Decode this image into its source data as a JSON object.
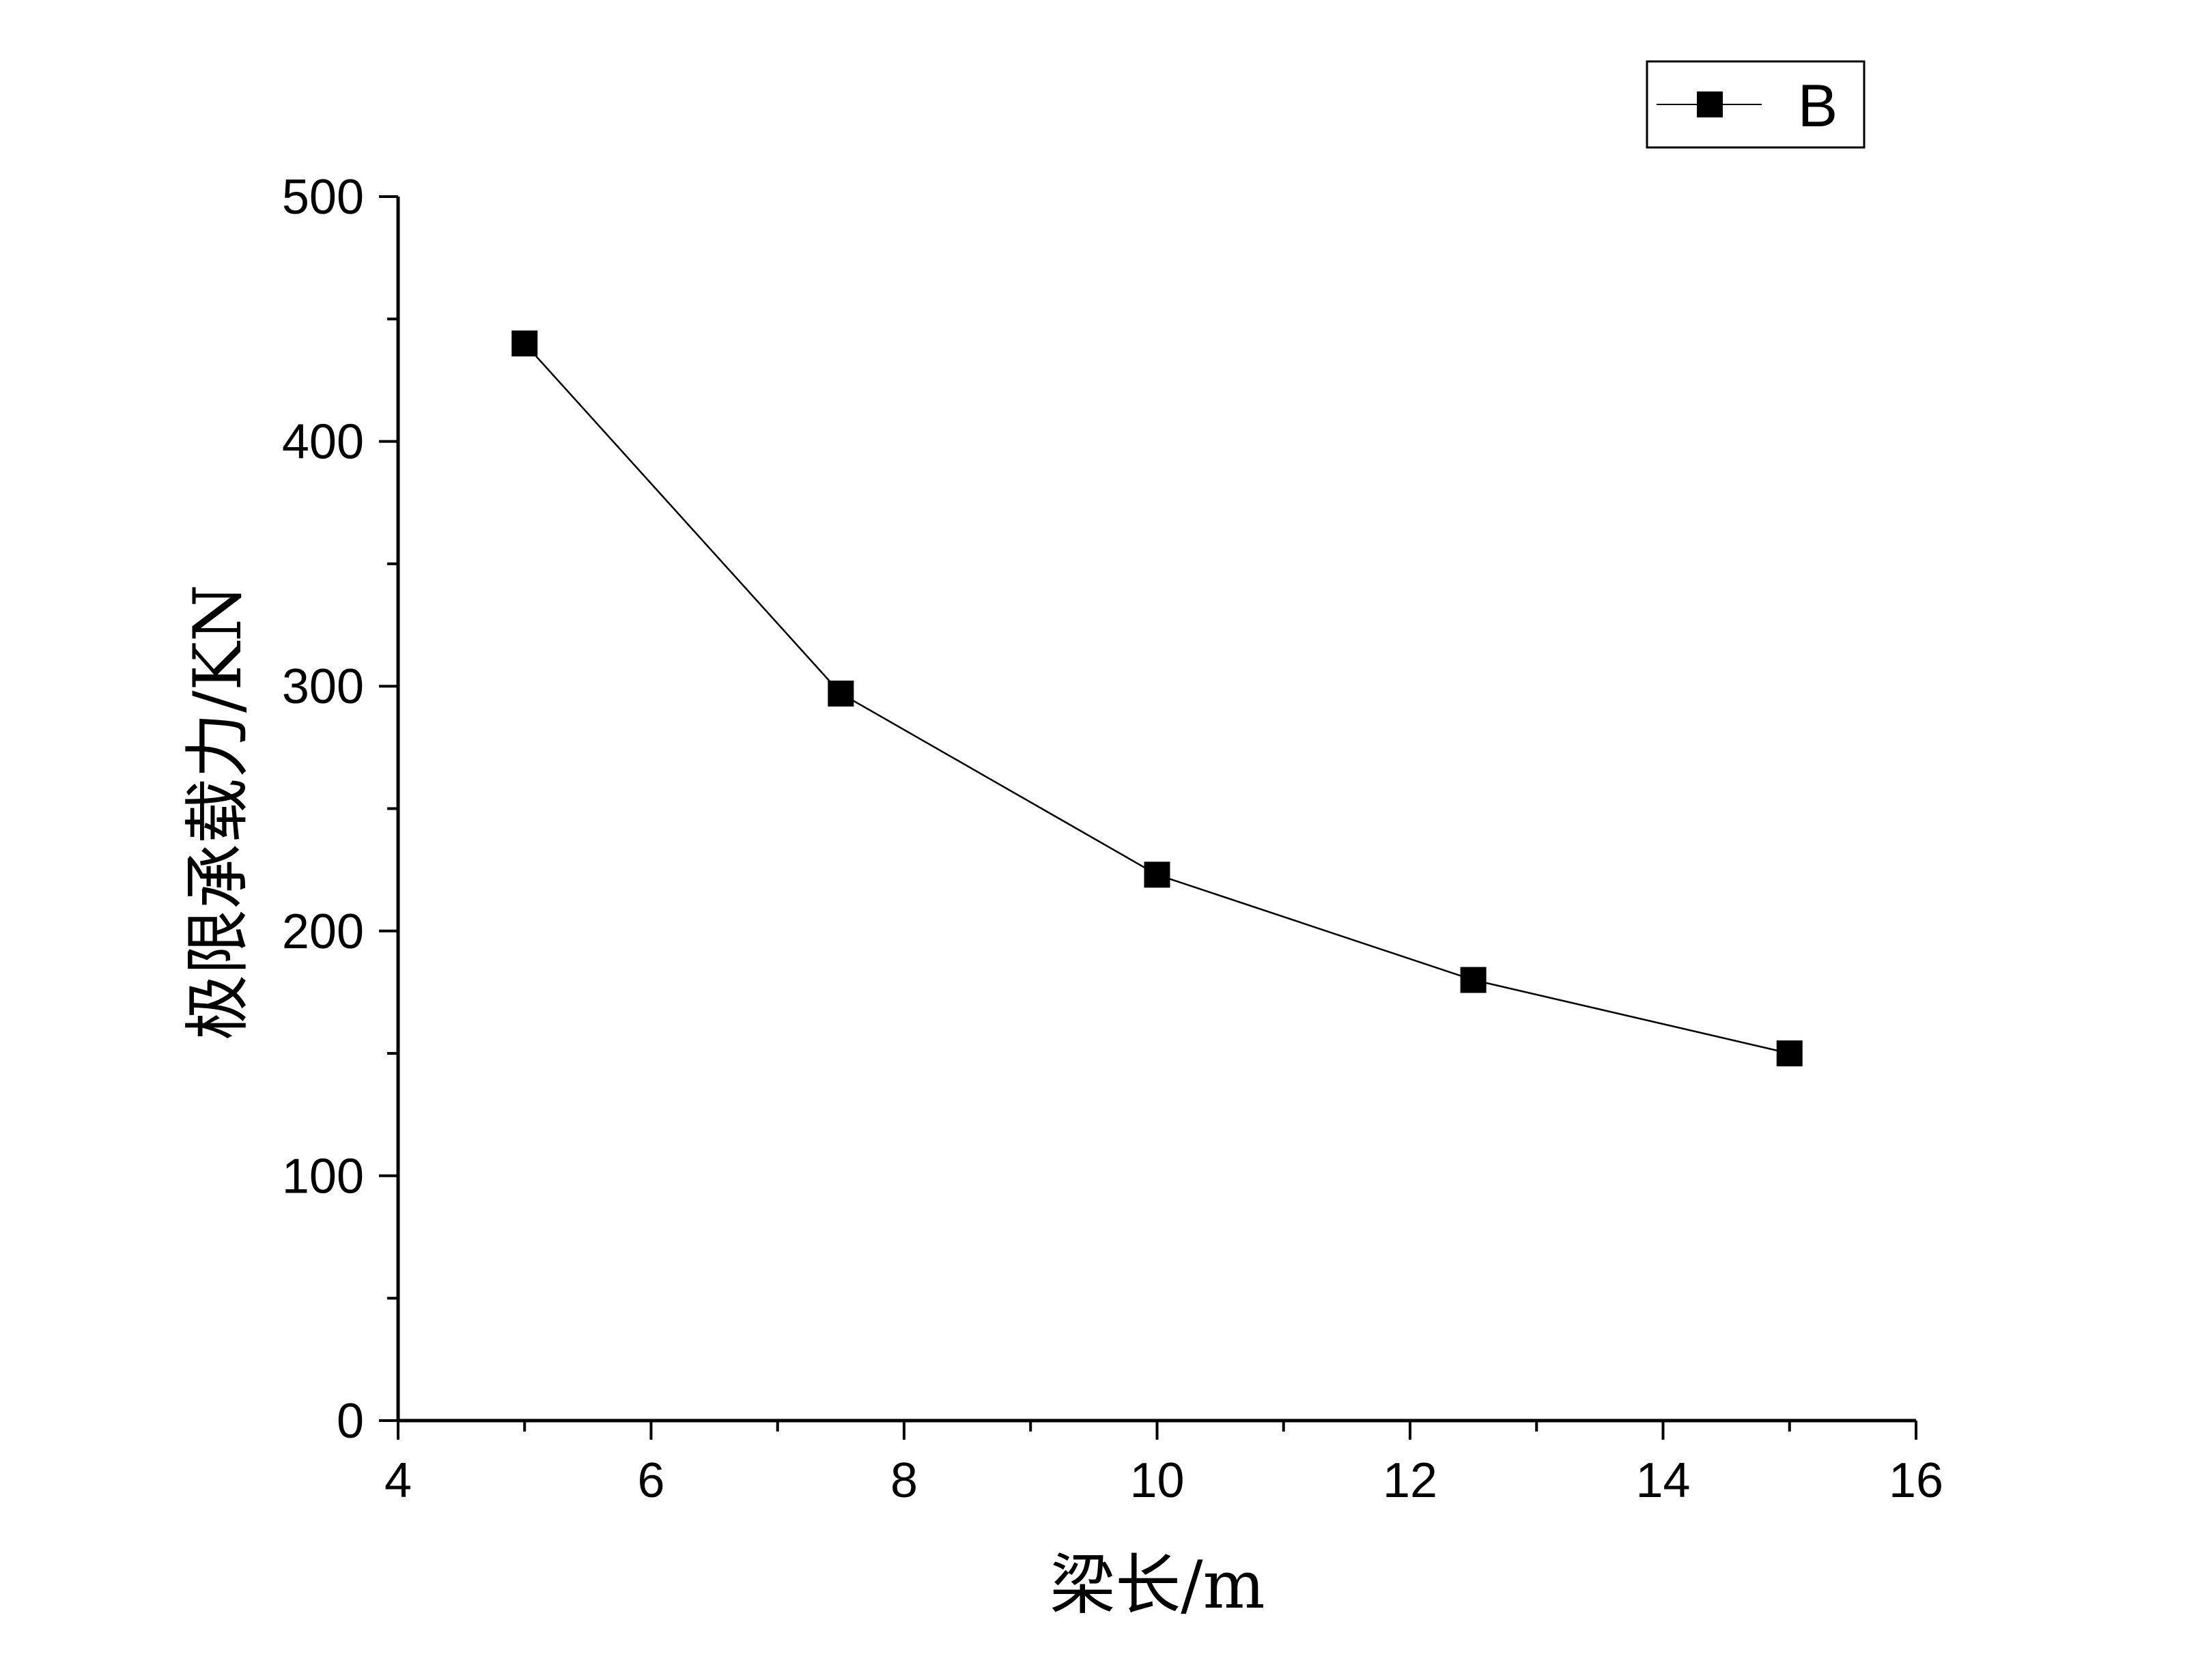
{
  "chart_data": {
    "type": "line",
    "title": "",
    "xlabel": "梁长/m",
    "ylabel": "极限承载力/KN",
    "xlim": [
      4,
      16
    ],
    "ylim": [
      0,
      500
    ],
    "x_ticks": [
      "4",
      "6",
      "8",
      "10",
      "12",
      "14",
      "16"
    ],
    "y_ticks": [
      "0",
      "100",
      "200",
      "300",
      "400",
      "500"
    ],
    "x_minor_step": 1,
    "y_minor_step": 50,
    "grid": false,
    "legend_position": "top-right",
    "series": [
      {
        "name": "B",
        "marker": "square",
        "color": "#000000",
        "x": [
          5,
          7.5,
          10,
          12.5,
          15
        ],
        "y": [
          440,
          297,
          223,
          180,
          150
        ]
      }
    ]
  }
}
